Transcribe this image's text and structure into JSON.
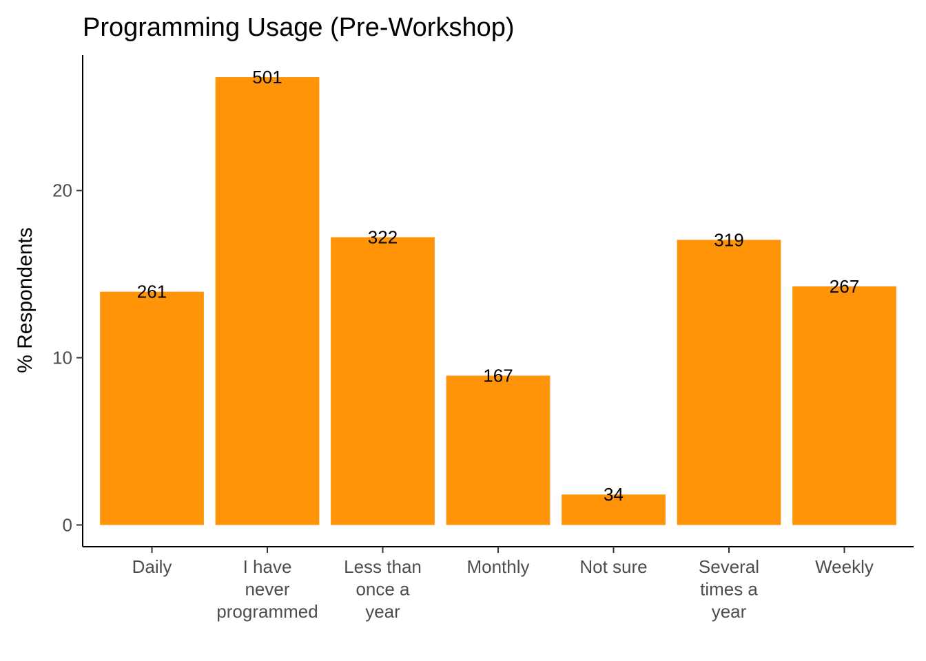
{
  "chart_data": {
    "type": "bar",
    "title": "Programming Usage (Pre-Workshop)",
    "xlabel": "",
    "ylabel": "% Respondents",
    "categories": [
      [
        "Daily"
      ],
      [
        "I have",
        "never",
        "programmed"
      ],
      [
        "Less than",
        "once a",
        "year"
      ],
      [
        "Monthly"
      ],
      [
        "Not sure"
      ],
      [
        "Several",
        "times a",
        "year"
      ],
      [
        "Weekly"
      ]
    ],
    "values": [
      13.95,
      26.78,
      17.21,
      8.93,
      1.82,
      17.05,
      14.27
    ],
    "counts": [
      "261",
      "501",
      "322",
      "167",
      "34",
      "319",
      "267"
    ],
    "y_ticks": [
      0,
      10,
      20
    ],
    "ylim": [
      -1.3,
      28.1
    ],
    "grid": false,
    "legend": "none",
    "bar_color": "#FF9408"
  }
}
